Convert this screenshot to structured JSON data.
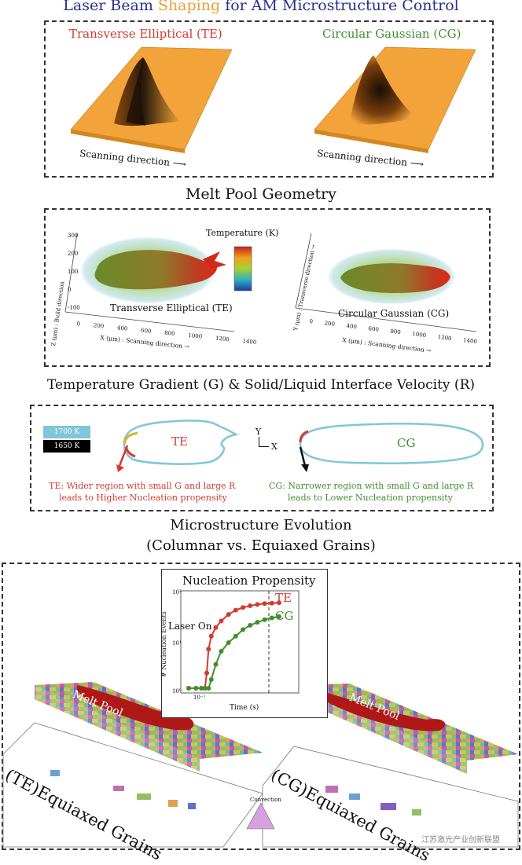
{
  "header": {
    "title_a": "Laser Beam",
    "title_b": "Shaping",
    "title_c": "for AM Microstructure Control",
    "title_a_color": "#2a2f8f",
    "title_b_color": "#e8a13a",
    "title_c_color": "#2a2f8f"
  },
  "beam_panel": {
    "te_label": "Transverse Elliptical (TE)",
    "cg_label": "Circular Gaussian (CG)",
    "scan_text": "Scanning direction",
    "te_color": "#d23a30",
    "cg_color": "#3f8f2f",
    "surface_color": "#f2a33a"
  },
  "melt_pool": {
    "heading": "Melt Pool Geometry",
    "temp_label": "Temperature (K)",
    "te_label": "Transverse Elliptical (TE)",
    "cg_label": "Circular Gaussian (CG)",
    "x_axis_label": "X (μm) : Scanning direction →",
    "y_axis_label": "Y (μm) : Transverse direction →",
    "z_axis_label": "Z (μm) : Build direction",
    "x_ticks": [
      "0",
      "200",
      "400",
      "600",
      "800",
      "1000",
      "1200",
      "1400"
    ],
    "z_ticks": [
      "300",
      "200",
      "100",
      "0",
      "-100"
    ]
  },
  "gradient": {
    "heading": "Temperature Gradient (G) & Solid/Liquid Interface Velocity (R)",
    "legend_1700": "1700 K",
    "legend_1650": "1650 K",
    "te_label": "TE",
    "cg_label": "CG",
    "axis_y": "Y",
    "axis_x": "X",
    "te_text_1": "TE: Wider region with small G and large R",
    "te_text_2": "leads to Higher Nucleation propensity",
    "cg_text_1": "CG: Narrower region with small G and large R",
    "cg_text_2": "leads to Lower Nucleation propensity"
  },
  "microstructure": {
    "heading_1": "Microstructure Evolution",
    "heading_2": "(Columnar vs. Equiaxed Grains)",
    "melt_pool_label": "Melt Pool",
    "te_grains": "(TE)Equiaxed Grains",
    "cg_grains": "(CG)Equiaxed Grains",
    "colorbar_label": "Convection",
    "watermark": "江苏激光产业创新联盟"
  },
  "chart_data": {
    "type": "line",
    "title": "Nucleation Propensity",
    "xlabel": "Time (s)",
    "ylabel": "# Nucleation Events",
    "ylog": true,
    "y_ticks": [
      "10⁰",
      "10¹",
      "10²"
    ],
    "x_tick": "10⁻¹",
    "annotation": "Laser On",
    "series": [
      {
        "name": "TE",
        "color": "#d23a30",
        "x": [
          0,
          0.08,
          0.14,
          0.18,
          0.2,
          0.22,
          0.25,
          0.3,
          0.36,
          0.44,
          0.52,
          0.6,
          0.68,
          0.76,
          0.84,
          0.92,
          1.0
        ],
        "y": [
          0,
          0,
          0,
          0,
          0.35,
          0.9,
          1.2,
          1.4,
          1.55,
          1.7,
          1.8,
          1.86,
          1.9,
          1.93,
          1.95,
          1.96,
          1.97
        ]
      },
      {
        "name": "CG",
        "color": "#3f8f2f",
        "x": [
          0,
          0.08,
          0.14,
          0.18,
          0.22,
          0.25,
          0.3,
          0.36,
          0.44,
          0.52,
          0.6,
          0.68,
          0.76,
          0.84,
          0.92,
          1.0
        ],
        "y": [
          0,
          0,
          0,
          0,
          0,
          0.2,
          0.55,
          0.85,
          1.05,
          1.2,
          1.35,
          1.45,
          1.52,
          1.58,
          1.62,
          1.65
        ]
      }
    ]
  }
}
